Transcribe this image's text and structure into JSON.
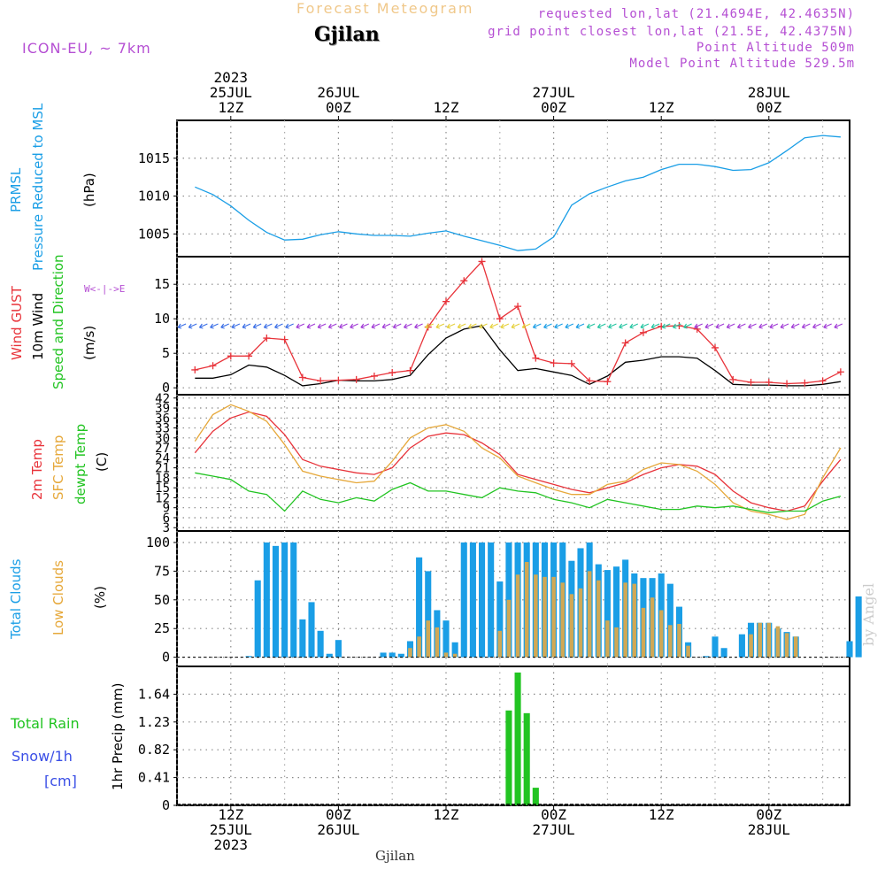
{
  "header": {
    "faint_title": "Forecast Meteogram",
    "location": "Gjilan",
    "model": "ICON-EU, ~ 7km",
    "requested": "requested lon,lat (21.4694E, 42.4635N)",
    "grid_point": "grid point closest lon,lat (21.5E, 42.4375N)",
    "point_alt": "Point Altitude 509m",
    "model_alt": "Model Point Altitude 529.5m"
  },
  "footer": {
    "location": "Gjilan",
    "watermark": "by Angel"
  },
  "time_axis": {
    "top": [
      {
        "h": 12,
        "lines": [
          "2023",
          "25JUL",
          "12Z"
        ]
      },
      {
        "h": 24,
        "lines": [
          "26JUL",
          "00Z"
        ]
      },
      {
        "h": 36,
        "lines": [
          "12Z"
        ]
      },
      {
        "h": 48,
        "lines": [
          "27JUL",
          "00Z"
        ]
      },
      {
        "h": 60,
        "lines": [
          "12Z"
        ]
      },
      {
        "h": 72,
        "lines": [
          "28JUL",
          "00Z"
        ]
      }
    ],
    "bottom": [
      {
        "h": 12,
        "lines": [
          "12Z",
          "25JUL",
          "2023"
        ]
      },
      {
        "h": 24,
        "lines": [
          "00Z",
          "26JUL"
        ]
      },
      {
        "h": 36,
        "lines": [
          "12Z"
        ]
      },
      {
        "h": 48,
        "lines": [
          "00Z",
          "27JUL"
        ]
      },
      {
        "h": 60,
        "lines": [
          "12Z"
        ]
      },
      {
        "h": 72,
        "lines": [
          "00Z",
          "28JUL"
        ]
      }
    ]
  },
  "labels": {
    "p1": [
      {
        "t": "PRMSL",
        "c": "#1a9ee6"
      },
      {
        "t": "Pressure Reduced to MSL",
        "c": "#1a9ee6"
      },
      {
        "t": "(hPa)",
        "c": "#000000"
      }
    ],
    "p2": [
      {
        "t": "Wind GUST",
        "c": "#e8333a"
      },
      {
        "t": "10m Wind",
        "c": "#000000"
      },
      {
        "t": "Speed and Direction",
        "c": "#22c422"
      },
      {
        "t": "(m/s)",
        "c": "#000000"
      }
    ],
    "p3": [
      {
        "t": "2m Temp",
        "c": "#e8333a"
      },
      {
        "t": "SFC Temp",
        "c": "#e6a83a"
      },
      {
        "t": "dewpt Temp",
        "c": "#22c422"
      },
      {
        "t": "(C)",
        "c": "#000000"
      }
    ],
    "p4": [
      {
        "t": "Total Clouds",
        "c": "#1a9ee6"
      },
      {
        "t": "Low Clouds",
        "c": "#e6a83a"
      },
      {
        "t": "(%)",
        "c": "#000000"
      }
    ],
    "p5_left": [
      {
        "t": "Total  Rain",
        "c": "#22c422"
      },
      {
        "t": "Snow/1h",
        "c": "#3a4ee6"
      },
      {
        "t": "[cm]",
        "c": "#3a4ee6"
      }
    ],
    "p5_axis": "1hr Precip (mm)",
    "compass": "N W<-|->E S"
  },
  "chart_data": [
    {
      "type": "line",
      "title": "PRMSL Pressure Reduced to MSL",
      "ylabel": "hPa",
      "x_unit": "forecast hours from 25JUL 00Z",
      "ylim": [
        1002,
        1020
      ],
      "yticks": [
        1005,
        1010,
        1015
      ],
      "x": [
        8,
        10,
        12,
        14,
        16,
        18,
        20,
        22,
        24,
        26,
        28,
        30,
        32,
        34,
        36,
        38,
        40,
        42,
        44,
        46,
        48,
        50,
        52,
        54,
        56,
        58,
        60,
        62,
        64,
        66,
        68,
        70,
        72,
        74,
        76,
        78,
        80
      ],
      "series": [
        {
          "name": "PRMSL",
          "color": "#1a9ee6",
          "values": [
            1011.2,
            1010.2,
            1008.7,
            1006.8,
            1005.2,
            1004.2,
            1004.3,
            1004.9,
            1005.3,
            1005.0,
            1004.8,
            1004.8,
            1004.7,
            1005.1,
            1005.4,
            1004.7,
            1004.1,
            1003.5,
            1002.8,
            1003.0,
            1004.6,
            1008.8,
            1010.3,
            1011.2,
            1012.0,
            1012.5,
            1013.5,
            1014.2,
            1014.2,
            1013.9,
            1013.4,
            1013.5,
            1014.4,
            1016.0,
            1017.7,
            1018.0,
            1017.8
          ]
        }
      ]
    },
    {
      "type": "line",
      "title": "Wind GUST / 10m Wind Speed and Direction",
      "ylabel": "m/s",
      "ylim": [
        -1,
        19
      ],
      "yticks": [
        0,
        5,
        10,
        15
      ],
      "x": [
        8,
        10,
        12,
        14,
        16,
        18,
        20,
        22,
        24,
        26,
        28,
        30,
        32,
        34,
        36,
        38,
        40,
        42,
        44,
        46,
        48,
        50,
        52,
        54,
        56,
        58,
        60,
        62,
        64,
        66,
        68,
        70,
        72,
        74,
        76,
        78,
        80
      ],
      "series": [
        {
          "name": "Wind GUST",
          "color": "#e8333a",
          "marker": "plus",
          "values": [
            2.6,
            3.2,
            4.6,
            4.6,
            7.2,
            7.0,
            1.5,
            1.0,
            1.1,
            1.2,
            1.7,
            2.2,
            2.5,
            8.8,
            12.5,
            15.5,
            18.3,
            10.0,
            11.8,
            4.3,
            3.6,
            3.5,
            1.0,
            0.9,
            6.5,
            8.0,
            8.9,
            9.0,
            8.5,
            5.8,
            1.2,
            0.8,
            0.8,
            0.6,
            0.7,
            1.0,
            2.3
          ]
        },
        {
          "name": "10m Wind",
          "color": "#000000",
          "values": [
            1.4,
            1.4,
            1.9,
            3.3,
            3.0,
            1.8,
            0.3,
            0.6,
            1.1,
            1.0,
            1.0,
            1.2,
            1.8,
            4.8,
            7.2,
            8.5,
            9.0,
            5.5,
            2.5,
            2.8,
            2.3,
            1.8,
            0.5,
            1.7,
            3.7,
            4.0,
            4.5,
            4.5,
            4.3,
            2.5,
            0.5,
            0.4,
            0.4,
            0.3,
            0.3,
            0.5,
            0.9
          ]
        }
      ]
    },
    {
      "type": "line",
      "title": "2m Temp / SFC Temp / dewpt Temp",
      "ylabel": "C",
      "ylim": [
        2,
        43
      ],
      "yticks": [
        3,
        6,
        9,
        12,
        15,
        18,
        21,
        24,
        27,
        30,
        33,
        36,
        39,
        42
      ],
      "x": [
        8,
        10,
        12,
        14,
        16,
        18,
        20,
        22,
        24,
        26,
        28,
        30,
        32,
        34,
        36,
        38,
        40,
        42,
        44,
        46,
        48,
        50,
        52,
        54,
        56,
        58,
        60,
        62,
        64,
        66,
        68,
        70,
        72,
        74,
        76,
        78,
        80
      ],
      "series": [
        {
          "name": "2m Temp",
          "color": "#e8333a",
          "values": [
            25.5,
            32.0,
            36.0,
            37.8,
            36.5,
            31.0,
            23.5,
            21.5,
            20.5,
            19.5,
            19.0,
            21.0,
            27.0,
            30.5,
            31.5,
            31.0,
            28.5,
            25.0,
            19.0,
            17.5,
            16.0,
            14.5,
            13.5,
            15.0,
            16.5,
            19.0,
            21.0,
            22.0,
            21.5,
            19.0,
            14.0,
            10.5,
            9.0,
            8.0,
            9.5,
            17.0,
            23.5
          ]
        },
        {
          "name": "SFC Temp",
          "color": "#e6a83a",
          "values": [
            29.0,
            37.0,
            40.0,
            38.0,
            35.0,
            28.0,
            20.0,
            18.5,
            17.5,
            16.5,
            17.0,
            23.0,
            30.0,
            33.0,
            34.0,
            32.0,
            27.0,
            24.0,
            18.5,
            16.5,
            14.5,
            13.0,
            13.0,
            16.0,
            17.0,
            20.5,
            22.5,
            22.0,
            20.0,
            16.0,
            10.5,
            8.0,
            7.0,
            5.5,
            7.0,
            18.0,
            27.0
          ]
        },
        {
          "name": "dewpt Temp",
          "color": "#22c422",
          "values": [
            19.5,
            18.5,
            17.5,
            14.0,
            13.0,
            8.0,
            14.0,
            11.5,
            10.5,
            12.0,
            11.0,
            14.5,
            16.5,
            14.0,
            14.0,
            13.0,
            12.0,
            15.0,
            14.0,
            13.5,
            11.5,
            10.5,
            9.0,
            11.5,
            10.5,
            9.5,
            8.5,
            8.5,
            9.5,
            9.0,
            9.5,
            8.5,
            7.5,
            8.0,
            8.0,
            11.0,
            12.5
          ]
        }
      ]
    },
    {
      "type": "bar",
      "title": "Total Clouds / Low Clouds",
      "ylabel": "%",
      "ylim": [
        -8,
        110
      ],
      "yticks": [
        0,
        25,
        50,
        75,
        100
      ],
      "x_start": 8,
      "x_step": 1,
      "series": [
        {
          "name": "Total Clouds",
          "color": "#1a9ee6",
          "values": [
            0,
            0,
            0,
            0,
            0,
            0,
            1,
            67,
            100,
            97,
            100,
            100,
            33,
            48,
            23,
            3,
            15,
            0,
            0,
            0,
            0,
            4,
            4,
            3,
            14,
            87,
            75,
            41,
            32,
            13,
            100,
            100,
            100,
            100,
            66,
            100,
            100,
            100,
            100,
            100,
            100,
            100,
            84,
            95,
            100,
            81,
            76,
            79,
            85,
            73,
            69,
            69,
            73,
            64,
            44,
            13,
            0,
            1,
            18,
            8,
            0,
            20,
            30,
            30,
            30,
            25,
            22,
            18,
            0,
            0,
            0,
            0,
            0,
            14,
            53
          ]
        },
        {
          "name": "Low Clouds",
          "color": "#d0a855",
          "values": [
            0,
            0,
            0,
            0,
            0,
            0,
            0,
            0,
            0,
            0,
            0,
            0,
            0,
            0,
            0,
            0,
            0,
            0,
            0,
            0,
            0,
            0,
            0,
            0,
            8,
            18,
            32,
            26,
            4,
            3,
            0,
            0,
            0,
            0,
            23,
            50,
            72,
            83,
            72,
            70,
            70,
            65,
            55,
            60,
            75,
            67,
            32,
            26,
            65,
            64,
            43,
            52,
            41,
            28,
            29,
            10,
            0,
            0,
            0,
            0,
            0,
            0,
            20,
            30,
            30,
            27,
            21,
            18,
            0,
            0,
            0,
            0,
            0,
            0,
            0
          ]
        }
      ]
    },
    {
      "type": "bar",
      "title": "Total Rain / Snow 1hr Precip",
      "ylabel": "1hr Precip (mm)",
      "ylim": [
        0,
        2.05
      ],
      "yticks": [
        0,
        0.41,
        0.82,
        1.23,
        1.64
      ],
      "x": [
        43,
        44,
        45,
        46
      ],
      "x_start": 8,
      "x_step": 1,
      "series": [
        {
          "name": "Total Rain",
          "color": "#22c422",
          "values": [
            1.4,
            1.96,
            1.36,
            0.26
          ]
        }
      ]
    }
  ]
}
